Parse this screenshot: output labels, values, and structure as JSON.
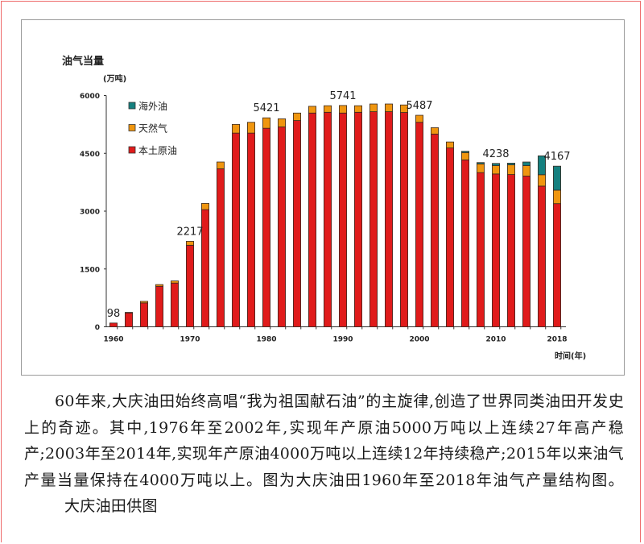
{
  "chart_data": {
    "type": "bar",
    "stacked": true,
    "title": "油气当量",
    "ylabel": "(万吨)",
    "xlabel": "时间(年)",
    "ylim": [
      0,
      6000
    ],
    "yticks": [
      0,
      1500,
      3000,
      4500,
      6000
    ],
    "xticks": [
      1960,
      1970,
      1980,
      1990,
      2000,
      2010,
      2018
    ],
    "grid": false,
    "legend_position": "top-left",
    "categories": [
      1960,
      1962,
      1964,
      1966,
      1968,
      1970,
      1972,
      1974,
      1976,
      1978,
      1980,
      1982,
      1984,
      1986,
      1988,
      1990,
      1992,
      1994,
      1996,
      1998,
      2000,
      2002,
      2004,
      2006,
      2008,
      2010,
      2012,
      2014,
      2016,
      2018
    ],
    "series": [
      {
        "name": "本土原油",
        "color": "#e01b1b",
        "values": [
          98,
          360,
          620,
          1050,
          1135,
          2115,
          3040,
          4100,
          5025,
          5025,
          5150,
          5185,
          5350,
          5545,
          5565,
          5545,
          5565,
          5580,
          5580,
          5560,
          5305,
          5000,
          4640,
          4330,
          4000,
          3965,
          3950,
          3910,
          3650,
          3195
        ]
      },
      {
        "name": "天然气",
        "color": "#f0960f",
        "values": [
          0,
          15,
          40,
          45,
          55,
          102,
          160,
          175,
          225,
          280,
          271,
          210,
          195,
          175,
          170,
          196,
          170,
          200,
          200,
          195,
          182,
          165,
          155,
          188,
          225,
          215,
          250,
          270,
          295,
          350
        ]
      },
      {
        "name": "海外油",
        "color": "#15807f",
        "values": [
          0,
          0,
          0,
          0,
          0,
          0,
          0,
          0,
          0,
          0,
          0,
          0,
          0,
          0,
          0,
          0,
          0,
          0,
          0,
          0,
          0,
          0,
          0,
          35,
          35,
          58,
          45,
          95,
          490,
          622
        ]
      }
    ],
    "data_labels": [
      {
        "x": 1960,
        "text": "98"
      },
      {
        "x": 1970,
        "text": "2217"
      },
      {
        "x": 1980,
        "text": "5421"
      },
      {
        "x": 1990,
        "text": "5741"
      },
      {
        "x": 2000,
        "text": "5487"
      },
      {
        "x": 2010,
        "text": "4238"
      },
      {
        "x": 2018,
        "text": "4167"
      }
    ]
  },
  "caption": {
    "text": "60年来,大庆油田始终高唱“我为祖国献石油”的主旋律,创造了世界同类油田开发史上的奇迹。其中,1976年至2002年,实现年产原油5000万吨以上连续27年高产稳产;2003年至2014年,实现年产原油4000万吨以上连续12年持续稳产;2015年以来油气产量当量保持在4000万吨以上。图为大庆油田1960年至2018年油气产量结构图。",
    "credit": "大庆油田供图"
  }
}
